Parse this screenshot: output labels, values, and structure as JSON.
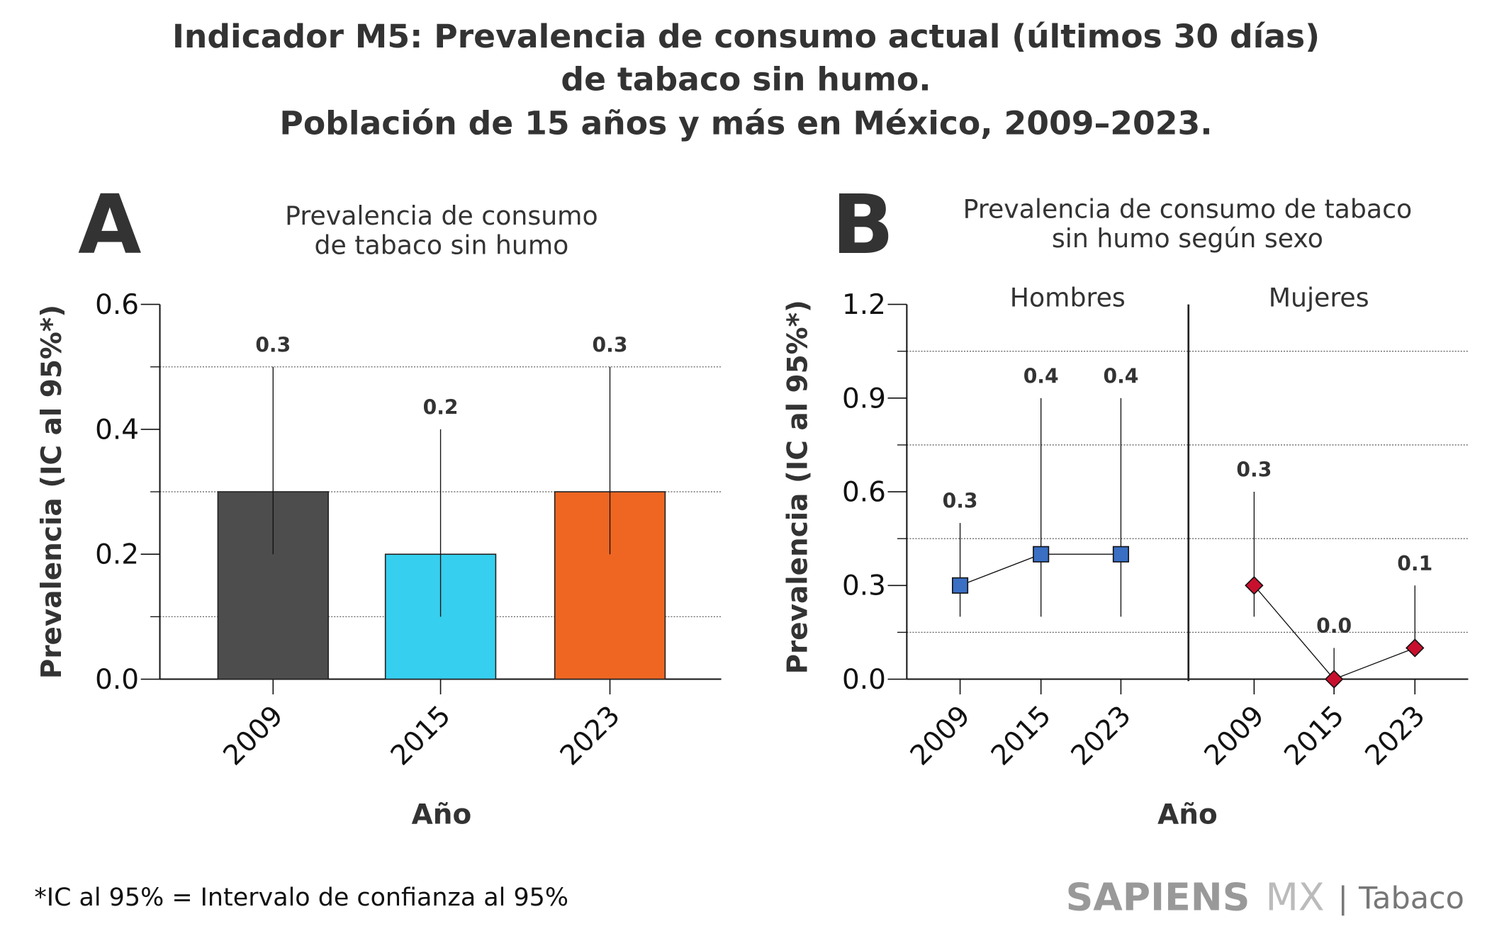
{
  "title": [
    "Indicador M5: Prevalencia de consumo actual (últimos 30 días)",
    "de tabaco sin humo.",
    "Población de 15 años y más en México, 2009–2023."
  ],
  "footnote": "*IC al 95% = Intervalo de confianza al 95%",
  "brand": {
    "sapiens": "SAPIENS",
    "mx": "MX",
    "sep": "|",
    "topic": "Tabaco"
  },
  "chart_data": [
    {
      "type": "bar",
      "panel": "A",
      "title": [
        "Prevalencia de consumo",
        "de tabaco sin humo"
      ],
      "xlabel": "Año",
      "ylabel": "Prevalencia (IC al 95%*)",
      "ylim": [
        0,
        0.6
      ],
      "yticks": [
        "0.0",
        "0.2",
        "0.4",
        "0.6"
      ],
      "grid_dotted_at": [
        0.1,
        0.3,
        0.5
      ],
      "categories": [
        "2009",
        "2015",
        "2023"
      ],
      "values": [
        0.3,
        0.2,
        0.3
      ],
      "labels": [
        "0.3",
        "0.2",
        "0.3"
      ],
      "ci_low": [
        0.2,
        0.1,
        0.2
      ],
      "ci_high": [
        0.5,
        0.4,
        0.5
      ],
      "colors": [
        "#4d4d4d",
        "#36cfef",
        "#ee6622"
      ]
    },
    {
      "type": "line",
      "panel": "B",
      "title": [
        "Prevalencia de consumo de tabaco",
        "sin humo según sexo"
      ],
      "xlabel": "Año",
      "ylabel": "Prevalencia (IC al 95%*)",
      "ylim": [
        0,
        1.2
      ],
      "yticks": [
        "0.0",
        "0.3",
        "0.6",
        "0.9",
        "1.2"
      ],
      "grid_dotted_at": [
        0.15,
        0.45,
        0.75,
        1.05
      ],
      "categories": [
        "2009",
        "2015",
        "2023"
      ],
      "series": [
        {
          "name": "Hombres",
          "values": [
            0.3,
            0.4,
            0.4
          ],
          "labels": [
            "0.3",
            "0.4",
            "0.4"
          ],
          "ci_low": [
            0.2,
            0.2,
            0.2
          ],
          "ci_high": [
            0.5,
            0.9,
            0.9
          ],
          "color": "#3a6fc4",
          "marker": "square"
        },
        {
          "name": "Mujeres",
          "values": [
            0.3,
            0.0,
            0.1
          ],
          "labels": [
            "0.3",
            "0.0",
            "0.1"
          ],
          "ci_low": [
            0.2,
            0.0,
            0.1
          ],
          "ci_high": [
            0.6,
            0.1,
            0.3
          ],
          "color": "#c8102e",
          "marker": "diamond"
        }
      ]
    }
  ]
}
